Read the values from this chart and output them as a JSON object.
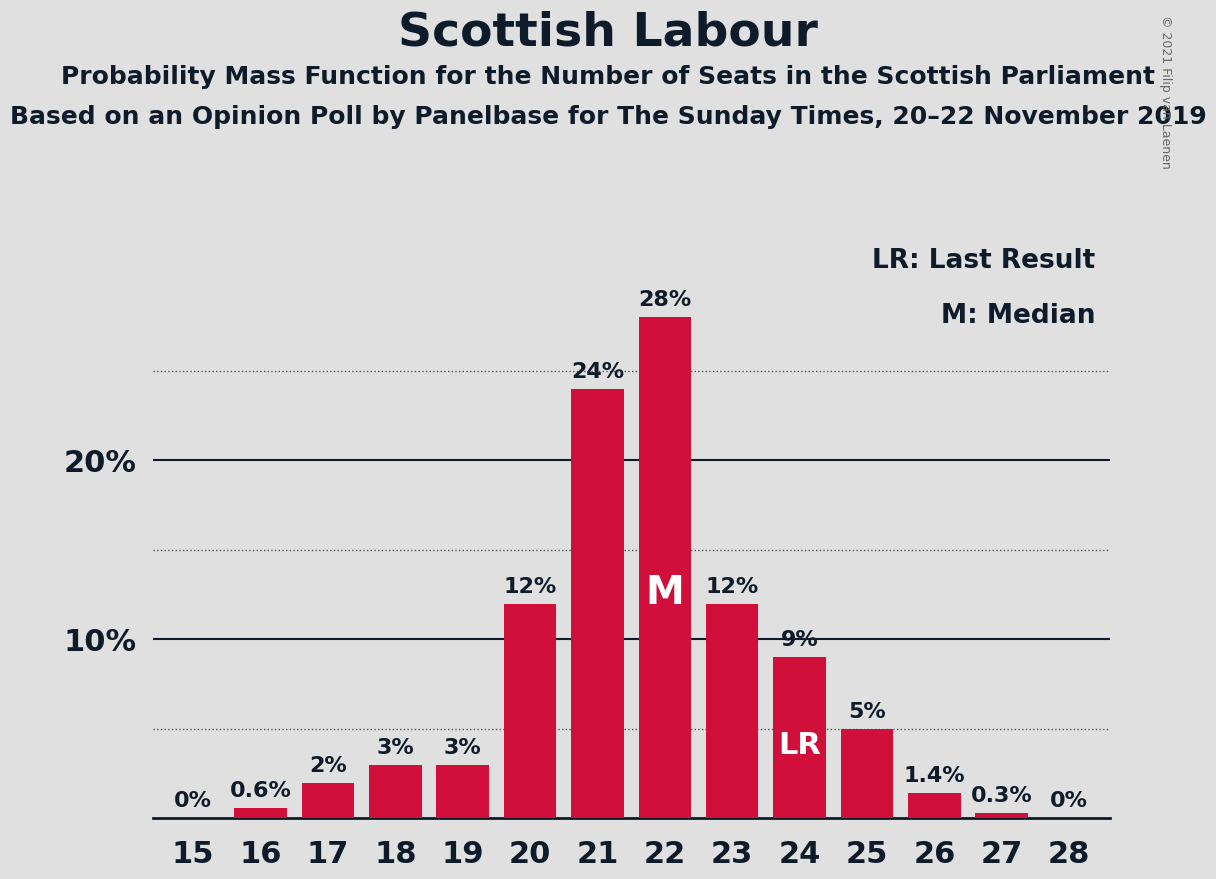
{
  "title": "Scottish Labour",
  "subtitle1": "Probability Mass Function for the Number of Seats in the Scottish Parliament",
  "subtitle2": "Based on an Opinion Poll by Panelbase for The Sunday Times, 20–22 November 2019",
  "copyright": "© 2021 Filip van Laenen",
  "categories": [
    15,
    16,
    17,
    18,
    19,
    20,
    21,
    22,
    23,
    24,
    25,
    26,
    27,
    28
  ],
  "values": [
    0,
    0.6,
    2,
    3,
    3,
    12,
    24,
    28,
    12,
    9,
    5,
    1.4,
    0.3,
    0
  ],
  "labels": [
    "0%",
    "0.6%",
    "2%",
    "3%",
    "3%",
    "12%",
    "24%",
    "28%",
    "12%",
    "9%",
    "5%",
    "1.4%",
    "0.3%",
    "0%"
  ],
  "bar_color": "#D0103A",
  "background_color": "#E0E0E0",
  "title_color": "#0d1b2a",
  "median_seat": 22,
  "median_label": "M",
  "last_result_seat": 24,
  "last_result_label": "LR",
  "dotted_grid": [
    5,
    15,
    25
  ],
  "solid_lines": [
    10,
    20
  ],
  "ylim": [
    0,
    32
  ],
  "legend_lr": "LR: Last Result",
  "legend_m": "M: Median",
  "title_fontsize": 34,
  "subtitle_fontsize": 18,
  "tick_fontsize": 22,
  "bar_label_fontsize": 16,
  "legend_fontsize": 19,
  "copyright_fontsize": 9
}
